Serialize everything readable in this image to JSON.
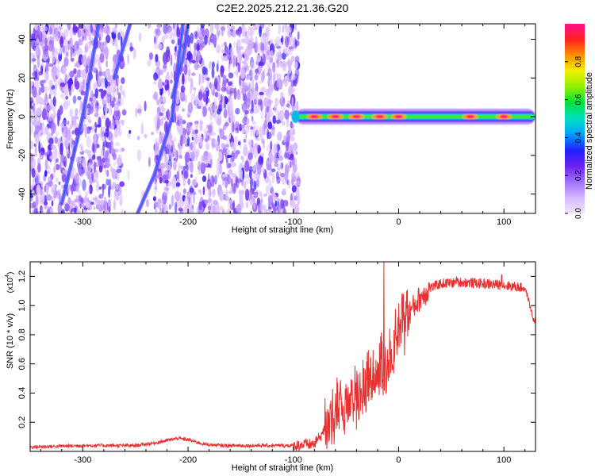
{
  "figure_title": "C2E2.2025.212.21.36.G20",
  "chart_data": [
    {
      "type": "heatmap",
      "xlabel": "Height of straight line (km)",
      "ylabel": "Frequency (Hz)",
      "xlim": [
        -350,
        130
      ],
      "ylim": [
        -50,
        48
      ],
      "x_ticks": [
        -300,
        -200,
        -100,
        0,
        100
      ],
      "x_tick_labels": [
        "-300",
        "-200",
        "-100",
        "0",
        "100"
      ],
      "y_ticks": [
        -40,
        -20,
        0,
        20,
        40
      ],
      "y_tick_labels": [
        "-40",
        "-20",
        "0",
        "20",
        "40"
      ],
      "colorbar": {
        "label": "Normalized spectral amplitude",
        "range": [
          0,
          1
        ],
        "ticks": [
          0,
          0.2,
          0.4,
          0.6,
          0.8
        ],
        "tick_labels": [
          "0.0",
          "0.2",
          "0.4",
          "0.6",
          "0.8"
        ],
        "colormap": [
          "#f2e6ff",
          "#d8b8ff",
          "#a070ff",
          "#6a20f0",
          "#2020ff",
          "#00a0ff",
          "#00e0c0",
          "#00e040",
          "#90f000",
          "#f0f000",
          "#ff9000",
          "#ff2020",
          "#ff1090"
        ]
      },
      "noise_region_x": [
        -350,
        -95
      ],
      "band_x": [
        -98,
        130
      ],
      "band_freq": 0,
      "band_hot_spots_x": [
        -80,
        -60,
        -40,
        -18,
        0,
        68,
        100
      ],
      "streaks": [
        {
          "x": [
            -320,
            -300,
            -285
          ],
          "y": [
            -45,
            0,
            48
          ]
        },
        {
          "x": [
            -248,
            -232,
            -215,
            -205
          ],
          "y": [
            -50,
            -30,
            0,
            48
          ]
        },
        {
          "x": [
            -215,
            -205,
            -200
          ],
          "y": [
            10,
            30,
            48
          ]
        },
        {
          "x": [
            -270,
            -255
          ],
          "y": [
            20,
            48
          ]
        }
      ],
      "grid": false,
      "legend": "none"
    },
    {
      "type": "line",
      "xlabel": "Height of straight line (km)",
      "ylabel": "SNR (10 * v/v)",
      "y_exponent_label": "(x10",
      "y_exponent": "4",
      "xlim": [
        -350,
        130
      ],
      "ylim": [
        0,
        1.3
      ],
      "x_ticks": [
        -300,
        -200,
        -100,
        0,
        100
      ],
      "x_tick_labels": [
        "-300",
        "-200",
        "-100",
        "0",
        "100"
      ],
      "y_ticks": [
        0.2,
        0.4,
        0.6,
        0.8,
        1.0,
        1.2
      ],
      "y_tick_labels": [
        "0.2",
        "0.4",
        "0.6",
        "0.8",
        "1.0",
        "1.2"
      ],
      "color": "#e83030",
      "profile": {
        "x": [
          -350,
          -300,
          -250,
          -230,
          -210,
          -200,
          -185,
          -170,
          -140,
          -100,
          -80,
          -70,
          -60,
          -50,
          -40,
          -30,
          -20,
          -15,
          -10,
          0,
          10,
          20,
          30,
          40,
          60,
          80,
          100,
          110,
          120,
          123,
          128,
          130
        ],
        "y": [
          0.03,
          0.04,
          0.04,
          0.06,
          0.09,
          0.08,
          0.05,
          0.04,
          0.04,
          0.04,
          0.05,
          0.15,
          0.28,
          0.33,
          0.38,
          0.45,
          0.55,
          0.6,
          0.62,
          0.8,
          0.95,
          1.05,
          1.12,
          1.15,
          1.16,
          1.15,
          1.14,
          1.13,
          1.12,
          1.05,
          0.9,
          0.9
        ]
      },
      "spikes": [
        {
          "x": -14,
          "y": 1.3
        },
        {
          "x": 55,
          "y": 1.2
        },
        {
          "x": 98,
          "y": 1.21
        }
      ],
      "grid": false,
      "legend": "none"
    }
  ]
}
